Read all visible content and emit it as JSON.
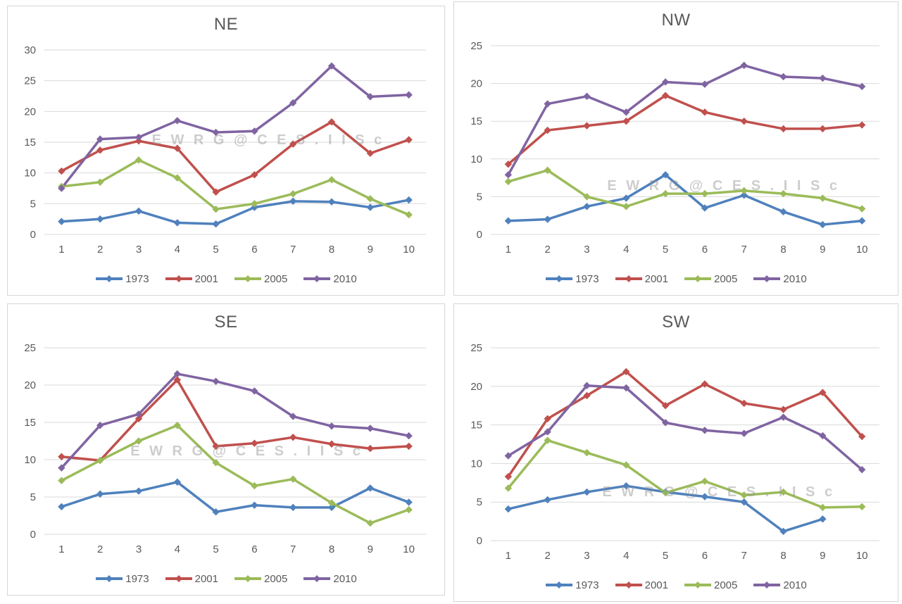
{
  "page": {
    "background": "#ffffff"
  },
  "watermark": {
    "text": "E W R G @ C E S . I I S c",
    "color": "rgba(145,145,145,0.45)"
  },
  "style_colors": {
    "gridline": "#d9d9d9",
    "axis_text": "#595959",
    "title_text": "#595959",
    "panel_border": "#d6d6d6"
  },
  "chart_data": [
    {
      "type": "line",
      "title": "NE",
      "x": [
        1,
        2,
        3,
        4,
        5,
        6,
        7,
        8,
        9,
        10
      ],
      "xlabel": "",
      "ylabel": "",
      "ylim": [
        0,
        30
      ],
      "ytick_step": 5,
      "grid": true,
      "legend_position": "bottom",
      "watermark_pos": {
        "left_pct": 33.0,
        "top_pct": 43.7
      },
      "series": [
        {
          "name": "1973",
          "color": "#4F81BD",
          "values": [
            2.1,
            2.5,
            3.8,
            1.9,
            1.7,
            4.4,
            5.4,
            5.3,
            4.4,
            5.6
          ]
        },
        {
          "name": "2001",
          "color": "#C0504D",
          "values": [
            10.3,
            13.7,
            15.2,
            14.0,
            6.9,
            9.7,
            14.7,
            18.3,
            13.2,
            15.4
          ]
        },
        {
          "name": "2005",
          "color": "#9BBB59",
          "values": [
            7.8,
            8.5,
            12.1,
            9.2,
            4.1,
            5.0,
            6.6,
            8.9,
            5.8,
            3.2
          ]
        },
        {
          "name": "2010",
          "color": "#8064A2",
          "values": [
            7.5,
            15.5,
            15.8,
            18.5,
            16.6,
            16.8,
            21.4,
            27.4,
            22.4,
            22.7
          ]
        }
      ]
    },
    {
      "type": "line",
      "title": "NW",
      "x": [
        1,
        2,
        3,
        4,
        5,
        6,
        7,
        8,
        9,
        10
      ],
      "xlabel": "",
      "ylabel": "",
      "ylim": [
        0,
        25
      ],
      "ytick_step": 5,
      "grid": true,
      "legend_position": "bottom",
      "watermark_pos": {
        "left_pct": 34.5,
        "top_pct": 60.0
      },
      "series": [
        {
          "name": "1973",
          "color": "#4F81BD",
          "values": [
            1.8,
            2.0,
            3.7,
            4.8,
            7.9,
            3.5,
            5.2,
            3.0,
            1.3,
            1.8
          ]
        },
        {
          "name": "2001",
          "color": "#C0504D",
          "values": [
            9.3,
            13.8,
            14.4,
            15.0,
            18.4,
            16.2,
            15.0,
            14.0,
            14.0,
            14.5
          ]
        },
        {
          "name": "2005",
          "color": "#9BBB59",
          "values": [
            7.0,
            8.5,
            5.0,
            3.7,
            5.4,
            5.4,
            5.8,
            5.4,
            4.8,
            3.4
          ]
        },
        {
          "name": "2010",
          "color": "#8064A2",
          "values": [
            7.9,
            17.3,
            18.3,
            16.2,
            20.2,
            19.9,
            22.4,
            20.9,
            20.7,
            19.6
          ]
        }
      ]
    },
    {
      "type": "line",
      "title": "SE",
      "x": [
        1,
        2,
        3,
        4,
        5,
        6,
        7,
        8,
        9,
        10
      ],
      "xlabel": "",
      "ylabel": "",
      "ylim": [
        0,
        25
      ],
      "ytick_step": 5,
      "grid": true,
      "legend_position": "bottom",
      "watermark_pos": {
        "left_pct": 28.1,
        "top_pct": 48.0
      },
      "series": [
        {
          "name": "1973",
          "color": "#4F81BD",
          "values": [
            3.7,
            5.4,
            5.8,
            7.0,
            3.0,
            3.9,
            3.6,
            3.6,
            6.2,
            4.3
          ]
        },
        {
          "name": "2001",
          "color": "#C0504D",
          "values": [
            10.4,
            9.9,
            15.5,
            20.7,
            11.8,
            12.2,
            13.0,
            12.1,
            11.5,
            11.8
          ]
        },
        {
          "name": "2005",
          "color": "#9BBB59",
          "values": [
            7.2,
            9.9,
            12.5,
            14.6,
            9.6,
            6.5,
            7.4,
            4.2,
            1.5,
            3.3
          ]
        },
        {
          "name": "2010",
          "color": "#8064A2",
          "values": [
            8.9,
            14.6,
            16.1,
            21.5,
            20.5,
            19.2,
            15.8,
            14.5,
            14.2,
            13.2
          ]
        }
      ]
    },
    {
      "type": "line",
      "title": "SW",
      "x": [
        1,
        2,
        3,
        4,
        5,
        6,
        7,
        8,
        9,
        10
      ],
      "xlabel": "",
      "ylabel": "",
      "ylim": [
        0,
        25
      ],
      "ytick_step": 5,
      "grid": true,
      "legend_position": "bottom",
      "watermark_pos": {
        "left_pct": 33.4,
        "top_pct": 60.6
      },
      "series": [
        {
          "name": "1973",
          "color": "#4F81BD",
          "values": [
            4.1,
            5.3,
            6.3,
            7.1,
            6.3,
            5.7,
            5.0,
            1.2,
            2.8,
            null
          ]
        },
        {
          "name": "2001",
          "color": "#C0504D",
          "values": [
            8.3,
            15.8,
            18.8,
            21.9,
            17.5,
            20.3,
            17.8,
            17.0,
            19.2,
            13.5
          ]
        },
        {
          "name": "2005",
          "color": "#9BBB59",
          "values": [
            6.8,
            13.0,
            11.4,
            9.8,
            6.2,
            7.7,
            5.9,
            6.3,
            4.3,
            4.4
          ]
        },
        {
          "name": "2010",
          "color": "#8064A2",
          "values": [
            11.0,
            14.1,
            20.1,
            19.8,
            15.3,
            14.3,
            13.9,
            16.0,
            13.6,
            9.2
          ]
        }
      ]
    }
  ]
}
